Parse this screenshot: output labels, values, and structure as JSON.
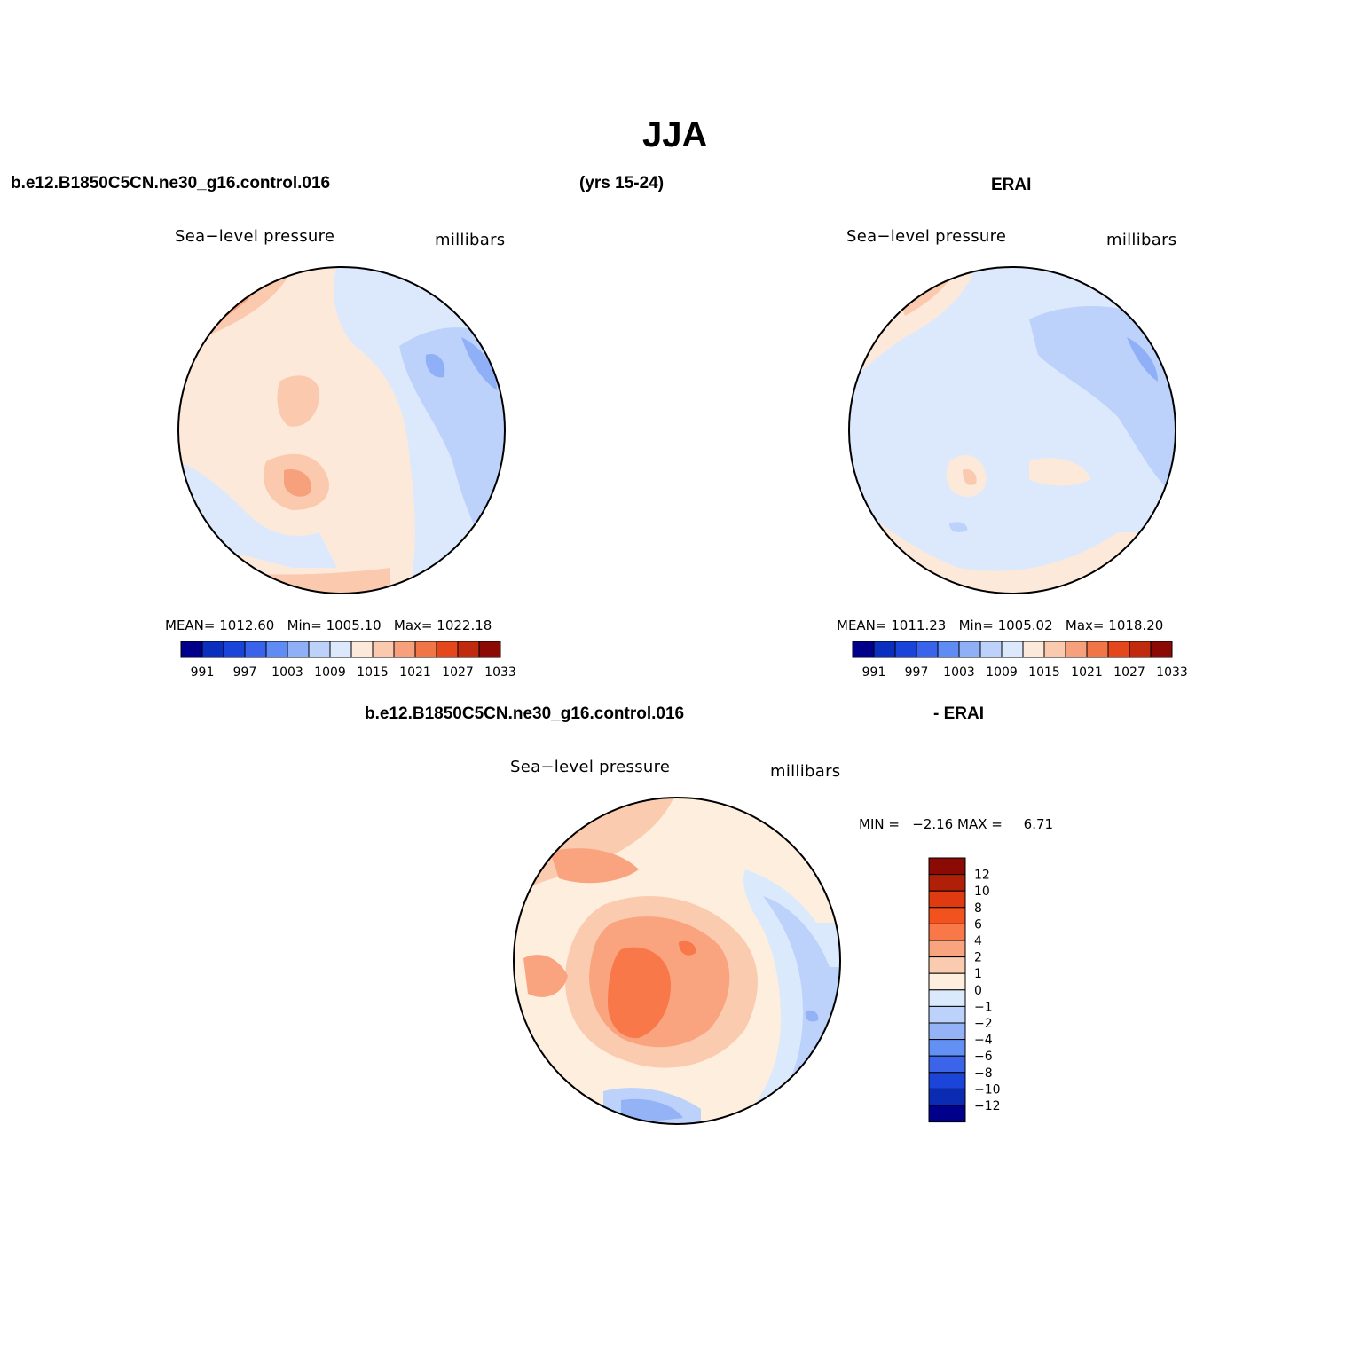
{
  "figure": {
    "title": "JJA"
  },
  "panels": {
    "model": {
      "case_name": "b.e12.B1850C5CN.ne30_g16.control.016",
      "years": "(yrs 15-24)",
      "variable": "Sea−level pressure",
      "units": "millibars",
      "stats": {
        "mean_label": "MEAN=",
        "mean": "1012.60",
        "min_label": "Min=",
        "min": "1005.10",
        "max_label": "Max=",
        "max": "1022.18"
      }
    },
    "obs": {
      "name": "ERAI",
      "variable": "Sea−level pressure",
      "units": "millibars",
      "stats": {
        "mean_label": "MEAN=",
        "mean": "1011.23",
        "min_label": "Min=",
        "min": "1005.02",
        "max_label": "Max=",
        "max": "1018.20"
      }
    },
    "diff": {
      "case_name": "b.e12.B1850C5CN.ne30_g16.control.016",
      "minus_label": "- ERAI",
      "variable": "Sea−level pressure",
      "units": "millibars",
      "stats": {
        "min_label": "MIN =",
        "min": "−2.16",
        "max_label": "MAX =",
        "max": "6.71"
      }
    }
  },
  "colorbar_abs": {
    "colors": [
      "#00008b",
      "#0a2ebd",
      "#1a43d9",
      "#3a63eb",
      "#5f8bf5",
      "#8fb0f7",
      "#bcd2fa",
      "#dce9fc",
      "#fde9da",
      "#fbc9ae",
      "#f7a07c",
      "#f07648",
      "#e4471c",
      "#c02b0f",
      "#8c0a04"
    ],
    "labels": [
      "991",
      "997",
      "1003",
      "1009",
      "1015",
      "1021",
      "1027",
      "1033"
    ]
  },
  "colorbar_diff": {
    "colors": [
      "#8c0a04",
      "#b01f08",
      "#e03a10",
      "#f2521e",
      "#f8784a",
      "#f9a47e",
      "#fbcbb0",
      "#fdeedd",
      "#dbe9fc",
      "#bcd2fa",
      "#93b3f6",
      "#6390f3",
      "#3b64eb",
      "#1b45d8",
      "#0b2bb3",
      "#00008b"
    ],
    "labels": [
      "12",
      "10",
      "8",
      "6",
      "4",
      "2",
      "1",
      "0",
      "−1",
      "−2",
      "−4",
      "−6",
      "−8",
      "−10",
      "−12"
    ]
  },
  "icons": [
    "map-model-slp",
    "map-erai-slp",
    "map-diff-slp"
  ]
}
